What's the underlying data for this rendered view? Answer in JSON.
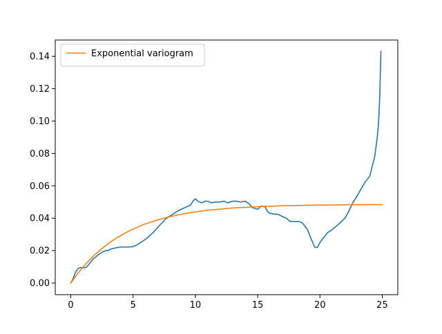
{
  "chart_data": {
    "type": "line",
    "title": "",
    "xlabel": "",
    "ylabel": "",
    "xlim": [
      -1.25,
      26.25
    ],
    "ylim": [
      -0.0072,
      0.15
    ],
    "xticks": [
      0,
      5,
      10,
      15,
      20,
      25
    ],
    "xtick_labels": [
      "0",
      "5",
      "10",
      "15",
      "20",
      "25"
    ],
    "yticks": [
      0.0,
      0.02,
      0.04,
      0.06,
      0.08,
      0.1,
      0.12,
      0.14
    ],
    "ytick_labels": [
      "0.00",
      "0.02",
      "0.04",
      "0.06",
      "0.08",
      "0.10",
      "0.12",
      "0.14"
    ],
    "grid": false,
    "legend": {
      "position": "top-left"
    },
    "series": [
      {
        "name": "",
        "color": "#1f77b4",
        "x": [
          0,
          0.2,
          0.4,
          0.6,
          0.8,
          1.0,
          1.2,
          1.4,
          1.6,
          1.8,
          2.0,
          2.2,
          2.5,
          2.8,
          3.0,
          3.2,
          3.5,
          3.8,
          4.0,
          4.3,
          4.6,
          5.0,
          5.3,
          5.6,
          6.0,
          6.3,
          6.6,
          7.0,
          7.3,
          7.6,
          8.0,
          8.3,
          8.6,
          9.0,
          9.3,
          9.6,
          9.8,
          10.0,
          10.2,
          10.5,
          10.8,
          11.0,
          11.3,
          11.6,
          12.0,
          12.3,
          12.6,
          13.0,
          13.3,
          13.6,
          14.0,
          14.3,
          14.6,
          15.0,
          15.3,
          15.6,
          15.8,
          16.0,
          16.3,
          16.6,
          17.0,
          17.3,
          17.6,
          18.0,
          18.3,
          18.6,
          19.0,
          19.3,
          19.6,
          19.8,
          20.0,
          20.3,
          20.6,
          21.0,
          21.3,
          21.6,
          22.0,
          22.3,
          22.6,
          23.0,
          23.3,
          23.6,
          24.0,
          24.2,
          24.4,
          24.6,
          24.7,
          24.8,
          24.85,
          24.9
        ],
        "values": [
          0.0,
          0.003,
          0.007,
          0.009,
          0.0095,
          0.0095,
          0.0095,
          0.011,
          0.013,
          0.015,
          0.016,
          0.0175,
          0.019,
          0.02,
          0.02,
          0.021,
          0.0215,
          0.022,
          0.0222,
          0.0222,
          0.0222,
          0.0225,
          0.0235,
          0.025,
          0.027,
          0.029,
          0.031,
          0.0345,
          0.037,
          0.0395,
          0.0415,
          0.043,
          0.0445,
          0.046,
          0.047,
          0.048,
          0.0505,
          0.052,
          0.0505,
          0.0495,
          0.0505,
          0.0505,
          0.0495,
          0.05,
          0.05,
          0.0505,
          0.0495,
          0.0505,
          0.0505,
          0.05,
          0.0505,
          0.049,
          0.0465,
          0.0455,
          0.0475,
          0.047,
          0.044,
          0.043,
          0.0425,
          0.0425,
          0.041,
          0.04,
          0.038,
          0.038,
          0.038,
          0.037,
          0.033,
          0.027,
          0.022,
          0.022,
          0.025,
          0.028,
          0.031,
          0.033,
          0.035,
          0.037,
          0.04,
          0.044,
          0.049,
          0.054,
          0.058,
          0.062,
          0.066,
          0.072,
          0.078,
          0.09,
          0.098,
          0.115,
          0.13,
          0.143
        ]
      },
      {
        "name": "Exponential variogram",
        "color": "#ff7f0e",
        "model": "exponential",
        "x": [
          0,
          0.5,
          1,
          1.5,
          2,
          2.5,
          3,
          3.5,
          4,
          4.5,
          5,
          5.5,
          6,
          6.5,
          7,
          7.5,
          8,
          8.5,
          9,
          9.5,
          10,
          10.5,
          11,
          11.5,
          12,
          12.5,
          13,
          13.5,
          14,
          14.5,
          15,
          15.5,
          16,
          16.5,
          17,
          17.5,
          18,
          18.5,
          19,
          19.5,
          20,
          20.5,
          21,
          21.5,
          22,
          22.5,
          23,
          23.5,
          24,
          24.5,
          25
        ],
        "values": [
          0.0,
          0.0053,
          0.01,
          0.0142,
          0.018,
          0.0213,
          0.0243,
          0.0269,
          0.0293,
          0.0314,
          0.0333,
          0.035,
          0.0365,
          0.0378,
          0.039,
          0.0401,
          0.041,
          0.0419,
          0.0426,
          0.0433,
          0.0439,
          0.0444,
          0.0449,
          0.0453,
          0.0456,
          0.046,
          0.0463,
          0.0465,
          0.0467,
          0.0469,
          0.0471,
          0.0473,
          0.0474,
          0.0475,
          0.0477,
          0.0478,
          0.0478,
          0.0479,
          0.048,
          0.048,
          0.0481,
          0.0481,
          0.0482,
          0.0482,
          0.0483,
          0.0483,
          0.0483,
          0.0483,
          0.0484,
          0.0484,
          0.0484
        ]
      }
    ]
  }
}
